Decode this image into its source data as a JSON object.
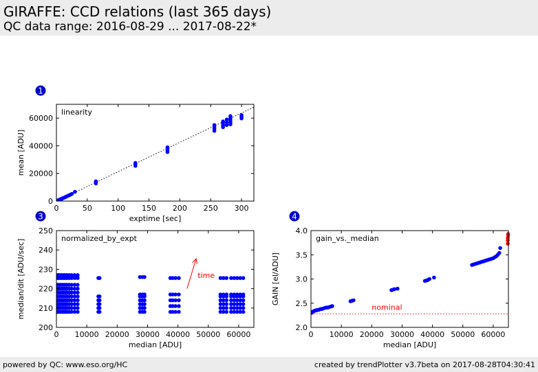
{
  "header": {
    "title": "GIRAFFE: CCD relations (last 365 days)",
    "subtitle": "QC data range: 2016-08-29 ... 2017-08-22*"
  },
  "footer": {
    "left": "powered by QC: www.eso.org/HC",
    "right": "created by trendPlotter v3.7beta on 2017-08-28T04:30:41"
  },
  "colors": {
    "points": "#0000ff",
    "highlight": "#ff0000",
    "annotation": "#ff0000",
    "reference_line": "#000000"
  },
  "chart_data": [
    {
      "panel_number": "1",
      "type": "scatter",
      "title": "linearity",
      "xlabel": "exptime [sec]",
      "ylabel": "mean [ADU]",
      "xlim": [
        0,
        320
      ],
      "ylim": [
        0,
        70000
      ],
      "xticks": [
        0,
        50,
        100,
        150,
        200,
        250,
        300
      ],
      "xtick_labels": [
        "0",
        "50",
        "100",
        "150",
        "200",
        "250",
        "300"
      ],
      "yticks": [
        0,
        20000,
        40000,
        60000
      ],
      "ytick_labels": [
        "0",
        "20000",
        "40000",
        "60000"
      ],
      "reference_line": {
        "style": "dotted",
        "x": [
          0,
          320
        ],
        "y": [
          0,
          68000
        ]
      },
      "series": [
        {
          "x": [
            1,
            2,
            3,
            4,
            5,
            6,
            7,
            8,
            9,
            10,
            12,
            14,
            16,
            18,
            20,
            22,
            25,
            30,
            64,
            64,
            64,
            64,
            128,
            128,
            128,
            128,
            180,
            180,
            180,
            180,
            256,
            256,
            256,
            256,
            270,
            270,
            270,
            270,
            276,
            276,
            276,
            282,
            282,
            282,
            282,
            282,
            300,
            300,
            300
          ],
          "y": [
            200,
            400,
            600,
            800,
            1000,
            1200,
            1400,
            1600,
            1800,
            2000,
            2400,
            2800,
            3200,
            3700,
            4100,
            4500,
            5200,
            6700,
            12800,
            13400,
            13900,
            14300,
            25500,
            26300,
            27000,
            27600,
            35500,
            36800,
            37900,
            38900,
            50800,
            52300,
            53700,
            55000,
            53500,
            55000,
            56300,
            57600,
            55000,
            57000,
            59000,
            55500,
            57000,
            58500,
            60000,
            61500,
            59800,
            61000,
            62200
          ]
        }
      ]
    },
    {
      "panel_number": "3",
      "type": "scatter",
      "title": "normalized_by_expt",
      "xlabel": "median [ADU]",
      "ylabel": "median/dit [ADU/sec]",
      "xlim": [
        0,
        65000
      ],
      "ylim": [
        200,
        250
      ],
      "xticks": [
        0,
        10000,
        20000,
        30000,
        40000,
        50000,
        60000
      ],
      "xtick_labels": [
        "0",
        "10000",
        "20000",
        "30000",
        "40000",
        "50000",
        "60000"
      ],
      "yticks": [
        200,
        210,
        220,
        230,
        240,
        250
      ],
      "ytick_labels": [
        "200",
        "210",
        "220",
        "230",
        "240",
        "250"
      ],
      "annotations": [
        {
          "text": "time",
          "x": 46500,
          "y": 225.5
        },
        {
          "arrow": true,
          "x1": 43000,
          "y1": 220,
          "x2": 46000,
          "y2": 235.5
        }
      ],
      "series": [
        {
          "x": [],
          "y": []
        }
      ]
    },
    {
      "panel_number": "4",
      "type": "scatter",
      "title": "gain_vs._median",
      "xlabel": "median [ADU]",
      "ylabel": "GAIN [el/ADU]",
      "xlim": [
        0,
        65000
      ],
      "ylim": [
        2.0,
        4.0
      ],
      "xticks": [
        0,
        10000,
        20000,
        30000,
        40000,
        50000,
        60000
      ],
      "xtick_labels": [
        "0",
        "10000",
        "20000",
        "30000",
        "40000",
        "50000",
        "60000"
      ],
      "yticks": [
        2.0,
        2.5,
        3.0,
        3.5,
        4.0
      ],
      "ytick_labels": [
        "2.0",
        "2.5",
        "3.0",
        "3.5",
        "4.0"
      ],
      "reference_line": {
        "label": "nominal",
        "y": 2.28,
        "style": "dotted"
      },
      "series": [
        {
          "x": [
            200,
            500,
            800,
            1100,
            1400,
            1700,
            2000,
            2400,
            2800,
            3200,
            3600,
            4000,
            4500,
            5000,
            5500,
            6000,
            6500,
            7000,
            13000,
            13500,
            14000,
            26500,
            27000,
            27500,
            28500,
            37500,
            38000,
            38500,
            39000,
            40500,
            53000,
            53500,
            54000,
            54500,
            55000,
            55500,
            56000,
            56500,
            57000,
            57500,
            58000,
            58500,
            59000,
            59500,
            60000,
            60500,
            61000,
            61500,
            62000,
            62300
          ],
          "y": [
            2.3,
            2.32,
            2.33,
            2.34,
            2.35,
            2.35,
            2.36,
            2.36,
            2.37,
            2.38,
            2.38,
            2.39,
            2.4,
            2.41,
            2.41,
            2.42,
            2.43,
            2.44,
            2.54,
            2.55,
            2.56,
            2.77,
            2.78,
            2.79,
            2.8,
            2.96,
            2.97,
            2.98,
            3.0,
            3.03,
            3.29,
            3.3,
            3.31,
            3.32,
            3.33,
            3.34,
            3.35,
            3.36,
            3.37,
            3.38,
            3.39,
            3.4,
            3.41,
            3.42,
            3.43,
            3.45,
            3.47,
            3.5,
            3.54,
            3.64
          ]
        },
        {
          "highlight": true,
          "x": [
            64800,
            64800,
            64800,
            64900,
            64900
          ],
          "y": [
            3.73,
            3.8,
            3.85,
            3.9,
            3.93
          ]
        }
      ]
    }
  ]
}
